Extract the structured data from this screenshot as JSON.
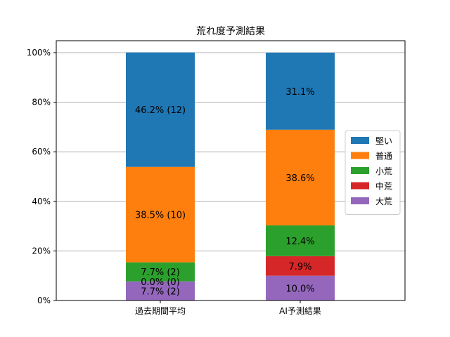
{
  "chart_data": {
    "type": "bar",
    "stacked": true,
    "title": "荒れ度予測結果",
    "xlabel": "",
    "ylabel": "",
    "ylim": [
      0,
      100
    ],
    "y_ticks": [
      "0%",
      "20%",
      "40%",
      "60%",
      "80%",
      "100%"
    ],
    "grid": "horizontal",
    "legend_position": "right",
    "categories": [
      "過去期間平均",
      "AI予測結果"
    ],
    "series": [
      {
        "name": "大荒",
        "color": "#9467bd",
        "values": [
          7.7,
          10.0
        ],
        "labels": [
          "7.7% (2)",
          "10.0%"
        ]
      },
      {
        "name": "中荒",
        "color": "#d62728",
        "values": [
          0.0,
          7.9
        ],
        "labels": [
          "0.0% (0)",
          "7.9%"
        ]
      },
      {
        "name": "小荒",
        "color": "#2ca02c",
        "values": [
          7.7,
          12.4
        ],
        "labels": [
          "7.7% (2)",
          "12.4%"
        ]
      },
      {
        "name": "普通",
        "color": "#ff7f0e",
        "values": [
          38.5,
          38.6
        ],
        "labels": [
          "38.5% (10)",
          "38.6%"
        ]
      },
      {
        "name": "堅い",
        "color": "#1f77b4",
        "values": [
          46.2,
          31.1
        ],
        "labels": [
          "46.2% (12)",
          "31.1%"
        ]
      }
    ],
    "legend_order": [
      "堅い",
      "普通",
      "小荒",
      "中荒",
      "大荒"
    ]
  }
}
